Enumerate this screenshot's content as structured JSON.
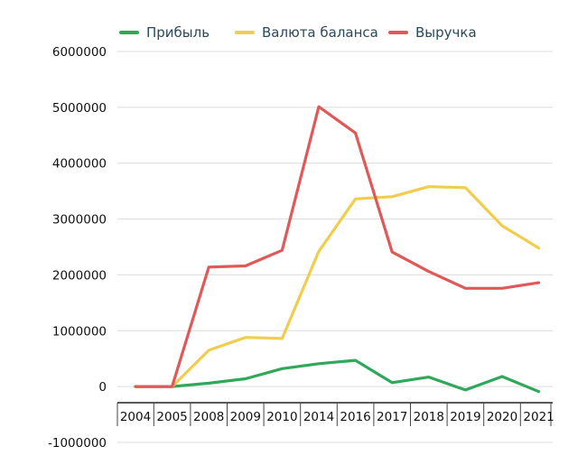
{
  "chart_data": {
    "type": "line",
    "categories": [
      "2004",
      "2005",
      "2008",
      "2009",
      "2010",
      "2014",
      "2016",
      "2017",
      "2018",
      "2019",
      "2020",
      "2021"
    ],
    "series": [
      {
        "name": "Прибыль",
        "color": "#2fa85a",
        "values": [
          0,
          0,
          60000,
          140000,
          320000,
          410000,
          470000,
          70000,
          170000,
          -60000,
          180000,
          -90000
        ]
      },
      {
        "name": "Валюта баланса",
        "color": "#f0cd4c",
        "values": [
          0,
          0,
          650000,
          880000,
          860000,
          2420000,
          3360000,
          3400000,
          3580000,
          3560000,
          2880000,
          2480000
        ]
      },
      {
        "name": "Выручка",
        "color": "#e05858",
        "values": [
          0,
          0,
          2140000,
          2160000,
          2440000,
          5010000,
          4540000,
          2410000,
          2060000,
          1760000,
          1760000,
          1860000
        ]
      }
    ],
    "y_ticks": [
      "6000000",
      "5000000",
      "4000000",
      "3000000",
      "2000000",
      "1000000",
      "0",
      "-1000000"
    ],
    "ylim": [
      -1000000,
      6000000
    ],
    "grid": true,
    "legend_position": "top"
  }
}
